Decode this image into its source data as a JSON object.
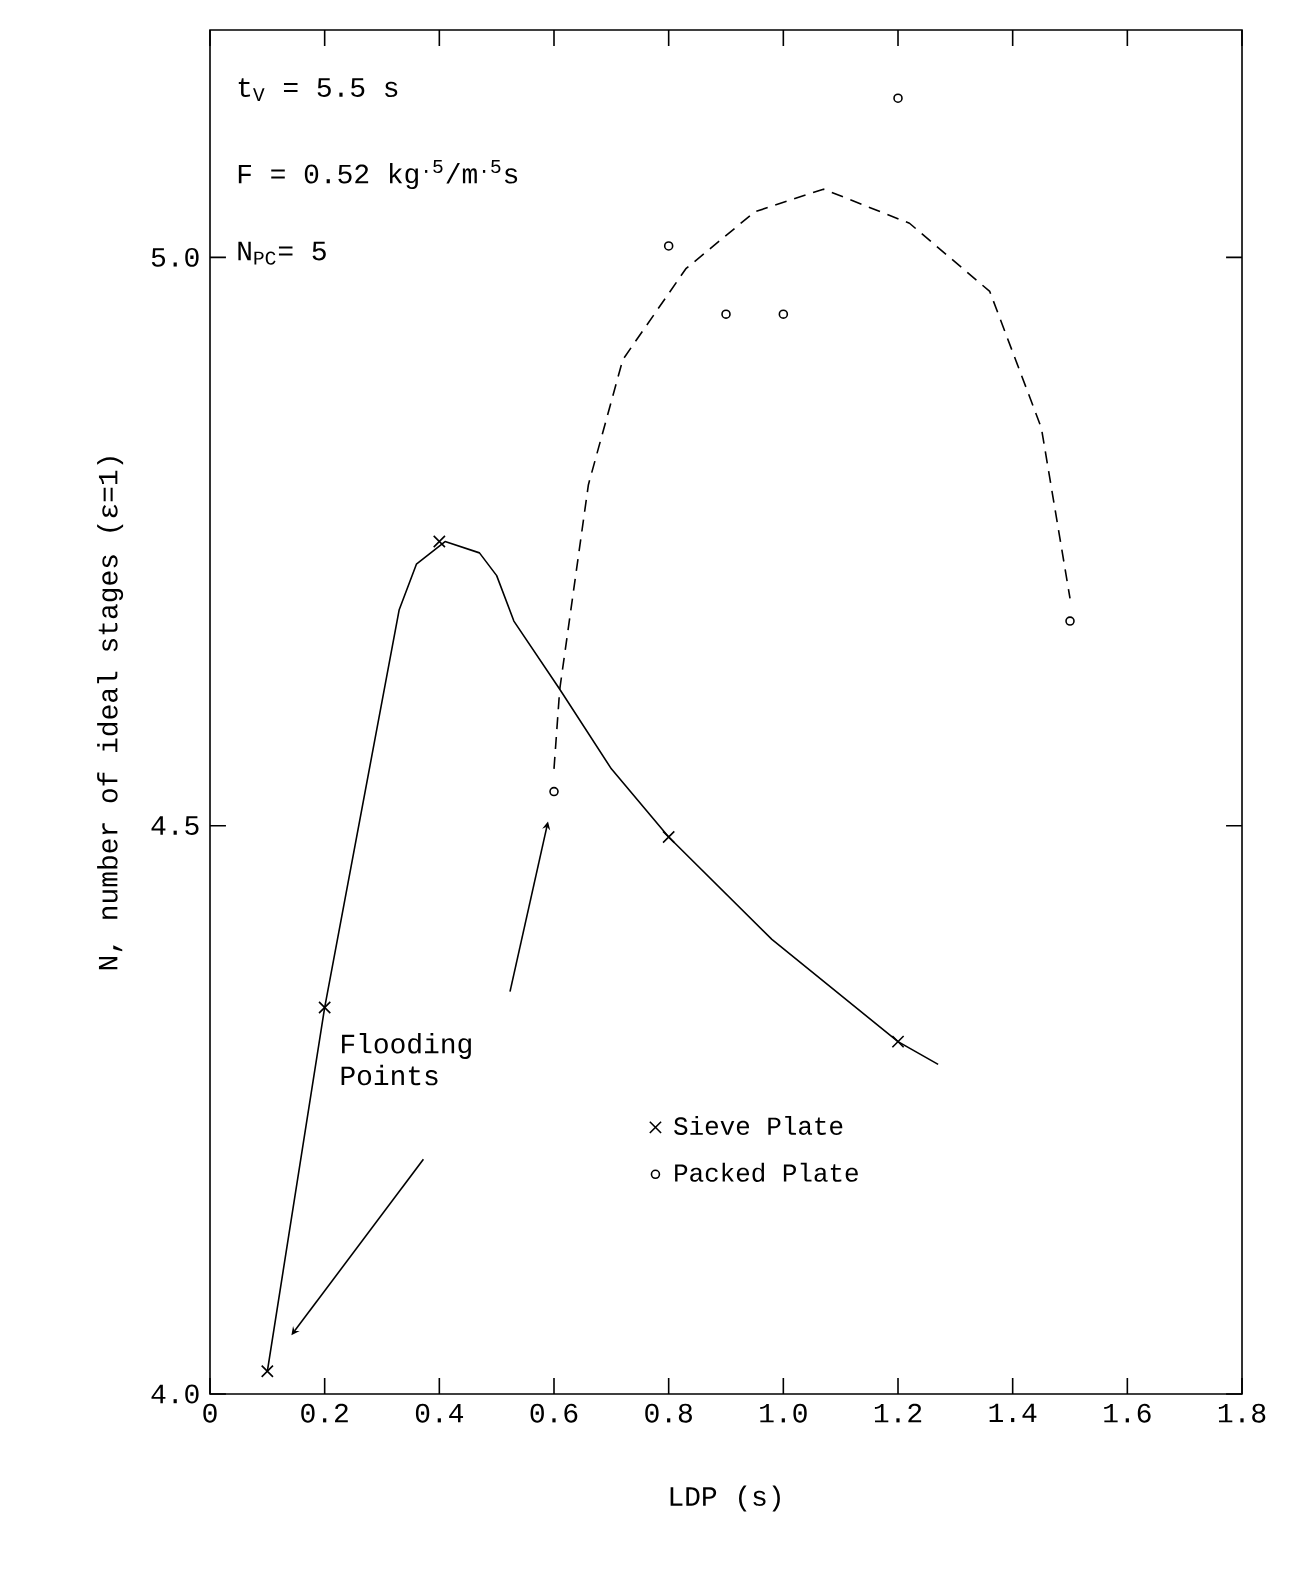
{
  "chart_data": {
    "type": "scatter",
    "xlabel": "LDP (s)",
    "ylabel": "N, number of ideal stages (ε=1)",
    "annotations": [
      "t$_{V}$ = 5.5 s",
      "F = 0.52 kg$^{.5}$/m$^{.5}$s",
      "N$_{PC}$= 5",
      "Flooding Points"
    ],
    "xlim": [
      0,
      1.8
    ],
    "ylim": [
      4.0,
      5.2
    ],
    "xticks": [
      0,
      0.2,
      0.4,
      0.6,
      0.8,
      {
        "value": 1.0,
        "label": "1.0"
      },
      1.2,
      1.4,
      1.6,
      1.8
    ],
    "yticks": [
      {
        "value": 4.0,
        "label": "4.0"
      },
      4.5,
      {
        "value": 5.0,
        "label": "5.0"
      }
    ],
    "legend": "bottom right",
    "series": [
      {
        "name": "Sieve Plate",
        "marker": "cross",
        "color": "#000000",
        "x": [
          0.1,
          0.2,
          0.4,
          0.8,
          1.2
        ],
        "values": [
          4.02,
          4.34,
          4.75,
          4.49,
          4.31
        ]
      },
      {
        "name": "Packed Plate",
        "marker": "circle",
        "color": "#000000",
        "x": [
          0.6,
          0.8,
          0.9,
          1.0,
          1.2,
          1.5
        ],
        "values": [
          4.53,
          5.01,
          4.95,
          4.95,
          5.14,
          4.68
        ]
      },
      {
        "type": "line",
        "line_style": "solid",
        "color": "#000000",
        "x": [
          0.1,
          0.2,
          0.33,
          0.36,
          0.41,
          0.47,
          0.5,
          0.53,
          0.61,
          0.7,
          0.8,
          0.98,
          1.2,
          1.27
        ],
        "values": [
          4.02,
          4.34,
          4.69,
          4.73,
          4.75,
          4.74,
          4.72,
          4.68,
          4.62,
          4.55,
          4.49,
          4.4,
          4.31,
          4.29
        ]
      },
      {
        "type": "line",
        "line_style": "dashed",
        "color": "#000000",
        "x": [
          0.6,
          0.61,
          0.66,
          0.72,
          0.83,
          0.95,
          1.07,
          1.22,
          1.36,
          1.45,
          1.5
        ],
        "values": [
          4.55,
          4.62,
          4.8,
          4.91,
          4.99,
          5.04,
          5.06,
          5.03,
          4.97,
          4.85,
          4.7
        ]
      }
    ]
  }
}
